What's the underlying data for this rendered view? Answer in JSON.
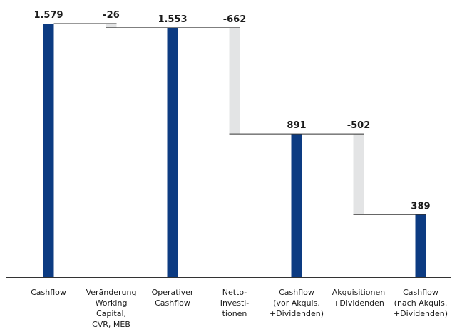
{
  "chart_data": {
    "type": "bar",
    "subtype": "waterfall",
    "categories": [
      [
        "Cashflow"
      ],
      [
        "Veränderung",
        "Working",
        "Capital,",
        "CVR, MEB"
      ],
      [
        "Operativer",
        "Cashflow"
      ],
      [
        "Netto-",
        "Investi-",
        "tionen"
      ],
      [
        "Cashflow",
        "(vor Akquis.",
        "+Dividenden)"
      ],
      [
        "Akquisitionen",
        "+Dividenden"
      ],
      [
        "Cashflow",
        "(nach Akquis.",
        "+Dividenden)"
      ]
    ],
    "bars": [
      {
        "kind": "total",
        "label": "1.579",
        "start": 0,
        "end": 1579
      },
      {
        "kind": "delta",
        "label": "-26",
        "start": 1579,
        "end": 1553
      },
      {
        "kind": "total",
        "label": "1.553",
        "start": 0,
        "end": 1553
      },
      {
        "kind": "delta",
        "label": "-662",
        "start": 1553,
        "end": 891
      },
      {
        "kind": "total",
        "label": "891",
        "start": 0,
        "end": 891
      },
      {
        "kind": "delta",
        "label": "-502",
        "start": 891,
        "end": 389
      },
      {
        "kind": "total",
        "label": "389",
        "start": 0,
        "end": 389
      }
    ],
    "ylim": [
      0,
      1579
    ],
    "grid": false,
    "colors": {
      "total": "#0c3b82",
      "delta": "#e3e4e5",
      "text": "#1a1a1a",
      "axis": "#333333"
    }
  }
}
